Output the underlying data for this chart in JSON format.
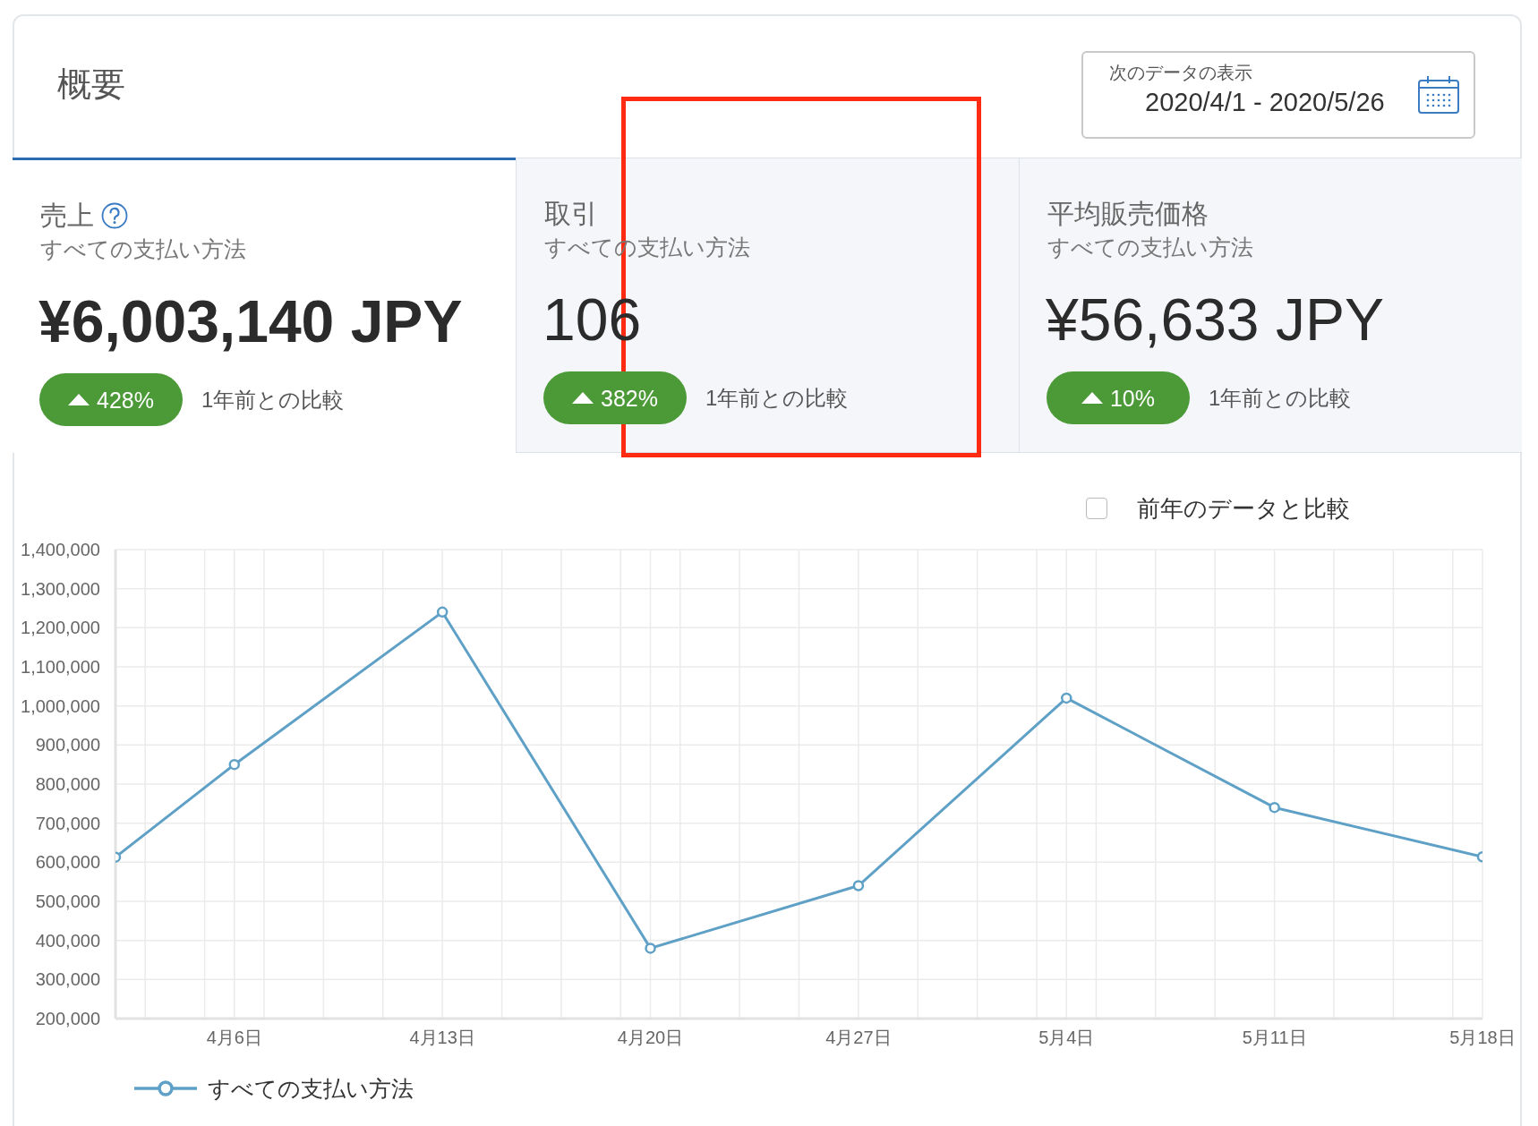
{
  "chart_data": [
    {
      "type": "other",
      "title": "概要",
      "annotations": [
        "次のデータの表示",
        "2020/4/1 - 2020/5/26"
      ]
    },
    {
      "type": "other",
      "title": "売上",
      "subtitle": "すべての支払い方法",
      "annotations": [
        "¥6,003,140 JPY",
        "428%",
        "1年前との比較"
      ]
    },
    {
      "type": "other",
      "title": "取引",
      "subtitle": "すべての支払い方法",
      "annotations": [
        "106",
        "382%",
        "1年前との比較"
      ]
    },
    {
      "type": "other",
      "title": "平均販売価格",
      "subtitle": "すべての支払い方法",
      "annotations": [
        "¥56,633 JPY",
        "10%",
        "1年前との比較"
      ]
    },
    {
      "type": "line",
      "x": [
        "--04-02",
        "--04-06",
        "--04-13",
        "--04-20",
        "--04-27",
        "--05-04",
        "--05-11",
        "--05-18"
      ],
      "series": [
        {
          "name": "すべての支払い方法",
          "color": "#5fa0c7",
          "values": [
            613000,
            850000,
            1240000,
            380000,
            540000,
            1020000,
            740000,
            614000
          ]
        }
      ],
      "xlim": [
        "--04-02",
        "--05-18"
      ],
      "xticks": [
        {
          "value": "--04-03",
          "label": null
        },
        {
          "value": "--04-05",
          "label": null
        },
        {
          "value": "--04-06",
          "label": "4月6日"
        },
        {
          "value": "--04-07",
          "label": null
        },
        {
          "value": "--04-09",
          "label": null
        },
        {
          "value": "--04-11",
          "label": null
        },
        {
          "value": "--04-13",
          "label": "4月13日"
        },
        {
          "value": "--04-15",
          "label": null
        },
        {
          "value": "--04-17",
          "label": null
        },
        {
          "value": "--04-19",
          "label": null
        },
        {
          "value": "--04-20",
          "label": "4月20日"
        },
        {
          "value": "--04-21",
          "label": null
        },
        {
          "value": "--04-23",
          "label": null
        },
        {
          "value": "--04-25",
          "label": null
        },
        {
          "value": "--04-27",
          "label": "4月27日"
        },
        {
          "value": "--04-29",
          "label": null
        },
        {
          "value": "--05-01",
          "label": null
        },
        {
          "value": "--05-03",
          "label": null
        },
        {
          "value": "--05-04",
          "label": "5月4日"
        },
        {
          "value": "--05-05",
          "label": null
        },
        {
          "value": "--05-07",
          "label": null
        },
        {
          "value": "--05-09",
          "label": null
        },
        {
          "value": "--05-11",
          "label": "5月11日"
        },
        {
          "value": "--05-13",
          "label": null
        },
        {
          "value": "--05-15",
          "label": null
        },
        {
          "value": "--05-17",
          "label": null
        },
        {
          "value": "--05-18",
          "label": "5月18日"
        }
      ],
      "ylim": [
        200000,
        1400000
      ],
      "yticks": [
        {
          "value": 200000,
          "label": "200,000"
        },
        {
          "value": 300000,
          "label": "300,000"
        },
        {
          "value": 400000,
          "label": "400,000"
        },
        {
          "value": 500000,
          "label": "500,000"
        },
        {
          "value": 600000,
          "label": "600,000"
        },
        {
          "value": 700000,
          "label": "700,000"
        },
        {
          "value": 800000,
          "label": "800,000"
        },
        {
          "value": 900000,
          "label": "900,000"
        },
        {
          "value": 1000000,
          "label": "1,000,000"
        },
        {
          "value": 1100000,
          "label": "1,100,000"
        },
        {
          "value": 1200000,
          "label": "1,200,000"
        },
        {
          "value": 1300000,
          "label": "1,300,000"
        },
        {
          "value": 1400000,
          "label": "1,400,000"
        }
      ],
      "grid": true,
      "legend": "bottom left",
      "marker": "circle",
      "line_style": "solid",
      "annotations": [
        "前年のデータと比較"
      ]
    }
  ]
}
